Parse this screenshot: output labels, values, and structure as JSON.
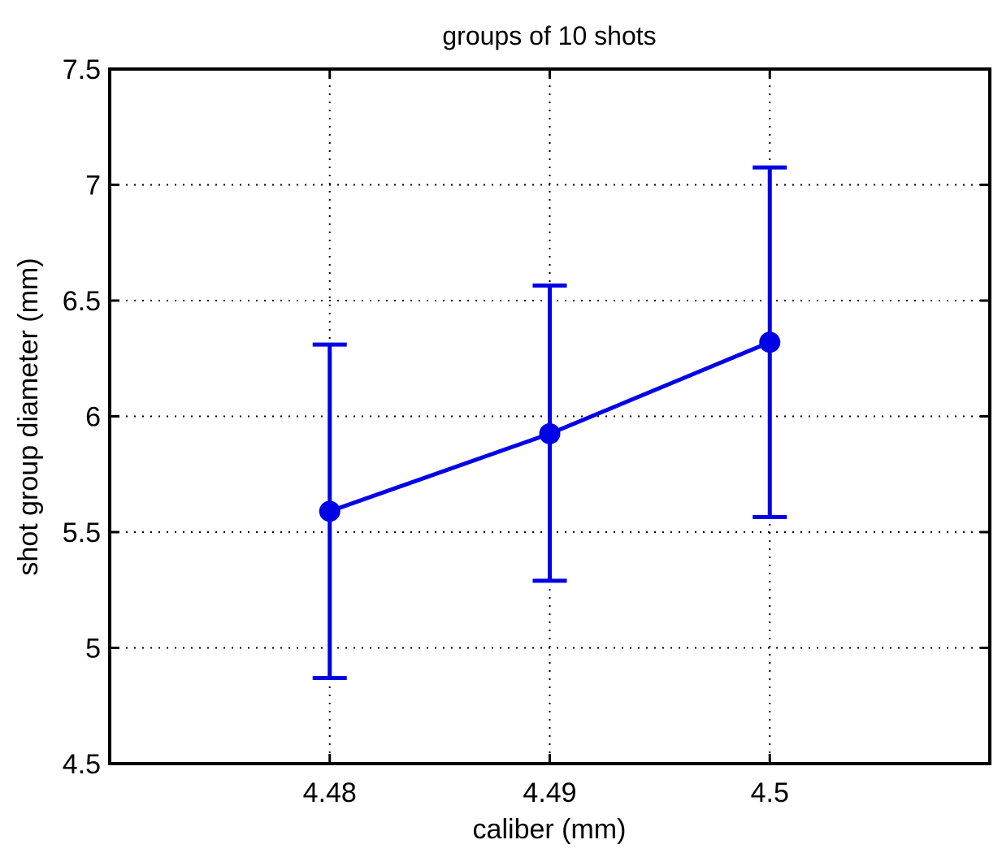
{
  "chart_data": {
    "type": "line",
    "title": "groups of 10 shots",
    "xlabel": "caliber (mm)",
    "ylabel": "shot group diameter (mm)",
    "xlim": [
      4.47,
      4.51
    ],
    "ylim": [
      4.5,
      7.5
    ],
    "xticks": [
      4.48,
      4.49,
      4.5
    ],
    "xtick_labels": [
      "4.48",
      "4.49",
      "4.5"
    ],
    "yticks": [
      4.5,
      5,
      5.5,
      6,
      6.5,
      7,
      7.5
    ],
    "ytick_labels": [
      "4.5",
      "5",
      "5.5",
      "6",
      "6.5",
      "7",
      "7.5"
    ],
    "grid": true,
    "legend": "none",
    "series": [
      {
        "x": [
          4.48,
          4.49,
          4.5
        ],
        "y": [
          5.59,
          5.925,
          6.32
        ],
        "error_lower": [
          4.87,
          5.29,
          5.565
        ],
        "error_upper": [
          6.31,
          6.565,
          7.075
        ],
        "color": "#0000e6"
      }
    ]
  }
}
